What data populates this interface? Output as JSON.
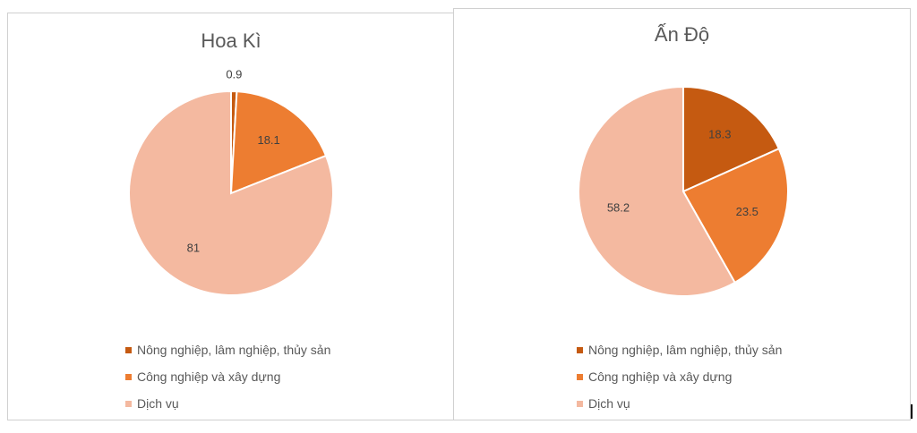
{
  "chart_data": [
    {
      "type": "pie",
      "title": "Hoa Kì",
      "categories": [
        "Nông nghiệp, lâm nghiệp, thủy sản",
        "Công nghiệp và xây dựng",
        "Dịch vụ"
      ],
      "values": [
        0.9,
        18.1,
        81
      ],
      "labels": [
        "0.9",
        "18.1",
        "81"
      ],
      "colors": [
        "#c55a11",
        "#ed7d31",
        "#f4b9a0"
      ],
      "legend_position": "bottom"
    },
    {
      "type": "pie",
      "title": "Ấn Độ",
      "categories": [
        "Nông nghiệp, lâm nghiệp, thủy sản",
        "Công nghiệp và xây dựng",
        "Dịch vụ"
      ],
      "values": [
        18.3,
        23.5,
        58.2
      ],
      "labels": [
        "18.3",
        "23.5",
        "58.2"
      ],
      "colors": [
        "#c55a11",
        "#ed7d31",
        "#f4b9a0"
      ],
      "legend_position": "bottom"
    }
  ]
}
